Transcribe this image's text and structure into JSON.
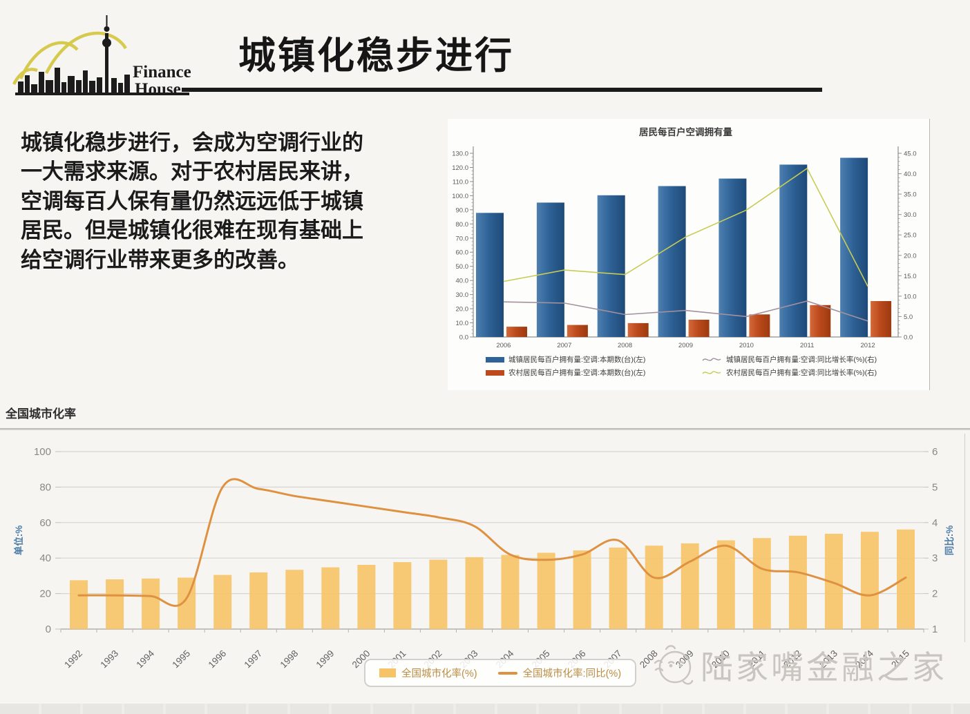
{
  "logo": {
    "line1": "Finance",
    "line2": "House"
  },
  "title": "城镇化稳步进行",
  "body_text": "城镇化稳步进行，会成为空调行业的\n一大需求来源。对于农村居民来讲，\n空调每百人保有量仍然远远低于城镇\n居民。但是城镇化很难在现有基础上\n给空调行业带来更多的改善。",
  "watermark": "陆家嘴金融之家",
  "chart_data": [
    {
      "type": "bar",
      "title": "居民每百户空调拥有量",
      "categories": [
        "2006",
        "2007",
        "2008",
        "2009",
        "2010",
        "2011",
        "2012"
      ],
      "series": [
        {
          "name": "城镇居民每百户拥有量:空调:本期数(台)(左)",
          "type": "bar",
          "axis": "left",
          "color": "#2F6296",
          "values": [
            87.8,
            95.1,
            100.3,
            106.8,
            112.1,
            122.0,
            126.8
          ]
        },
        {
          "name": "农村居民每百户拥有量:空调:本期数(台)(左)",
          "type": "bar",
          "axis": "left",
          "color": "#BC4A1C",
          "values": [
            7.3,
            8.5,
            9.8,
            12.2,
            16.0,
            22.6,
            25.4
          ]
        },
        {
          "name": "城镇居民每百户拥有量:空调:同比增长率(%)(右)",
          "type": "line",
          "axis": "right",
          "color": "#A3919F",
          "values": [
            8.6,
            8.3,
            5.5,
            6.5,
            5.0,
            8.8,
            3.9
          ]
        },
        {
          "name": "农村居民每百户拥有量:空调:同比增长率(%)(右)",
          "type": "line",
          "axis": "right",
          "color": "#C8CC55",
          "values": [
            13.6,
            16.4,
            15.3,
            24.5,
            31.1,
            41.3,
            12.4
          ]
        }
      ],
      "left_axis": {
        "min": 0,
        "max": 130,
        "step": 10,
        "unit": "台"
      },
      "right_axis": {
        "min": 0,
        "max": 45,
        "step": 5,
        "unit": "%"
      },
      "grid": false,
      "legend_position": "bottom"
    },
    {
      "type": "bar",
      "title": "全国城市化率",
      "categories": [
        "1992",
        "1993",
        "1994",
        "1995",
        "1996",
        "1997",
        "1998",
        "1999",
        "2000",
        "2001",
        "2002",
        "2003",
        "2004",
        "2005",
        "2006",
        "2007",
        "2008",
        "2009",
        "2010",
        "2011",
        "2012",
        "2013",
        "2014",
        "2015"
      ],
      "series": [
        {
          "name": "全国城市化率(%)",
          "type": "bar",
          "axis": "left",
          "color": "#F6C466",
          "values": [
            27.5,
            28.0,
            28.5,
            29.0,
            30.5,
            31.9,
            33.4,
            34.8,
            36.2,
            37.7,
            39.1,
            40.5,
            41.8,
            43.0,
            44.3,
            45.9,
            47.0,
            48.3,
            50.0,
            51.3,
            52.6,
            53.7,
            54.8,
            56.1
          ]
        },
        {
          "name": "全国城市化率:同比(%)",
          "type": "line",
          "axis": "right",
          "color": "#DE9140",
          "values": [
            1.95,
            1.95,
            1.93,
            1.87,
            5.0,
            4.95,
            4.75,
            4.6,
            4.45,
            4.3,
            4.15,
            3.9,
            3.1,
            2.95,
            3.1,
            3.5,
            2.45,
            2.9,
            3.35,
            2.7,
            2.6,
            2.3,
            1.95,
            2.45
          ]
        }
      ],
      "left_axis": {
        "min": 0,
        "max": 100,
        "step": 20,
        "label": "单位:%"
      },
      "right_axis": {
        "min": 1,
        "max": 6,
        "step": 1,
        "label": "同比:%"
      },
      "grid": true,
      "legend_position": "bottom"
    }
  ]
}
